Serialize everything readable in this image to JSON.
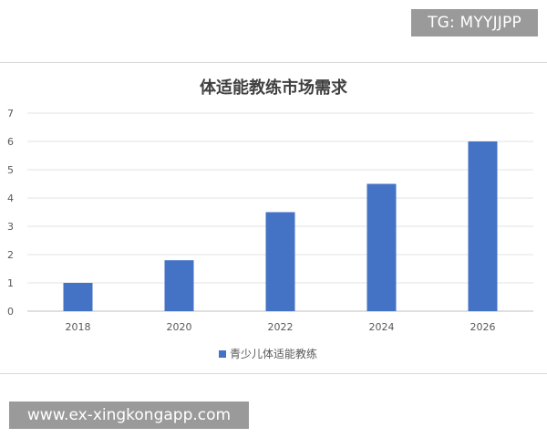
{
  "watermarks": {
    "top": "TG: MYYJJPP",
    "bottom": "www.ex-xingkongapp.com"
  },
  "chart_data": {
    "type": "bar",
    "title": "体适能教练市场需求",
    "xlabel": "",
    "ylabel": "",
    "categories": [
      "2018",
      "2020",
      "2022",
      "2024",
      "2026"
    ],
    "series": [
      {
        "name": "青少儿体适能教练",
        "values": [
          1,
          1.8,
          3.5,
          4.5,
          6
        ],
        "color": "#4472c4"
      }
    ],
    "ylim": [
      0,
      7
    ],
    "yticks": [
      "0",
      "1",
      "2",
      "3",
      "4",
      "5",
      "6",
      "7"
    ],
    "grid": true,
    "legend_position": "bottom"
  }
}
